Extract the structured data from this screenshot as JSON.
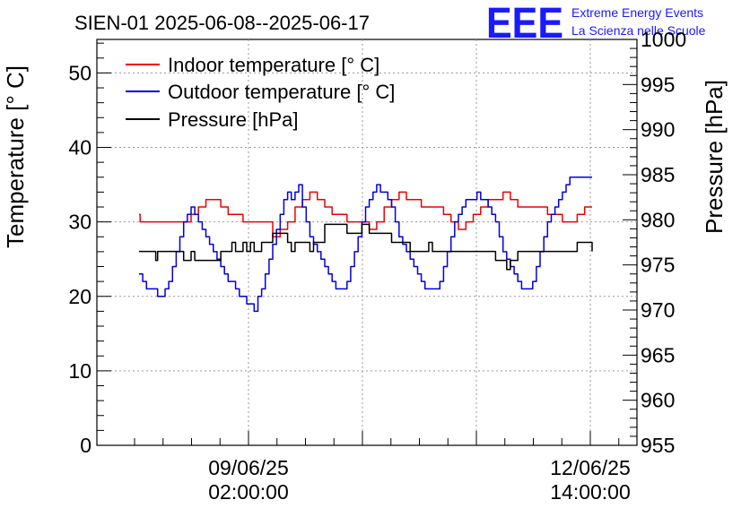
{
  "chart_data": {
    "type": "line",
    "title": "SIEN-01 2025-06-08--2025-06-17",
    "logo": {
      "text": "EEE",
      "line1": "Extreme Energy Events",
      "line2": "La Scienza nelle Scuole"
    },
    "ylabel_left": "Temperature [° C]",
    "ylabel_right": "Pressure [hPa]",
    "x_tick_labels": [
      {
        "date": "09/06/25",
        "time": "02:00:00"
      },
      {
        "date": "12/06/25",
        "time": "14:00:00"
      }
    ],
    "ylim_left": [
      0,
      54.5
    ],
    "ylim_right": [
      955,
      1000
    ],
    "left_ticks": [
      0,
      10,
      20,
      30,
      40,
      50
    ],
    "right_ticks": [
      955,
      960,
      965,
      970,
      975,
      980,
      985,
      990,
      995,
      1000
    ],
    "grid": true,
    "legend_position": "top-left",
    "x_axis": {
      "unit": "hours since 2025-06-08 00:00",
      "range": [
        0,
        122
      ]
    },
    "series": [
      {
        "name": "Indoor temperature [° C]",
        "color": "#ee0000",
        "axis": "left",
        "x": [
          0,
          0.3,
          2,
          6,
          8,
          10,
          12,
          14,
          16,
          18,
          20,
          22,
          24,
          26,
          28,
          30,
          32,
          34,
          36,
          38,
          40,
          42,
          44,
          46,
          48,
          50,
          52,
          54,
          56,
          58,
          60,
          62,
          64,
          66,
          68,
          70,
          72,
          74,
          76,
          78,
          80,
          82,
          84,
          86,
          88,
          90,
          92,
          94,
          96,
          98,
          100,
          102,
          104,
          106,
          108,
          110,
          112,
          114,
          116,
          118,
          120,
          122
        ],
        "values": [
          31,
          30,
          30,
          30,
          30,
          30,
          30,
          31,
          32,
          33,
          33,
          32,
          31,
          31,
          30,
          30,
          30,
          30,
          28,
          29,
          30,
          32,
          33,
          34,
          33,
          32,
          31,
          31,
          30,
          30,
          30,
          29,
          30,
          32,
          33,
          34,
          33,
          33,
          32,
          32,
          32,
          31,
          30,
          29,
          30,
          31,
          32,
          33,
          33,
          34,
          33,
          32,
          32,
          32,
          32,
          31,
          31,
          30,
          30,
          31,
          32,
          32
        ]
      },
      {
        "name": "Outdoor temperature [° C]",
        "color": "#0000dd",
        "axis": "left",
        "x": [
          0,
          1,
          2,
          3,
          4,
          5,
          6,
          7,
          8,
          9,
          10,
          11,
          12,
          13,
          14,
          15,
          16,
          17,
          18,
          19,
          20,
          21,
          22,
          23,
          24,
          25,
          26,
          27,
          28,
          29,
          30,
          31,
          32,
          33,
          34,
          35,
          36,
          37,
          38,
          39,
          40,
          41,
          42,
          43,
          44,
          45,
          46,
          47,
          48,
          49,
          50,
          51,
          52,
          53,
          54,
          55,
          56,
          57,
          58,
          59,
          60,
          61,
          62,
          63,
          64,
          65,
          66,
          67,
          68,
          69,
          70,
          71,
          72,
          73,
          74,
          75,
          76,
          77,
          78,
          79,
          80,
          81,
          82,
          83,
          84,
          85,
          86,
          87,
          88,
          89,
          90,
          91,
          92,
          93,
          94,
          95,
          96,
          97,
          98,
          99,
          100,
          101,
          102,
          103,
          104,
          105,
          106,
          107,
          108,
          109,
          110,
          111,
          112,
          113,
          114,
          115,
          116,
          117,
          118,
          119,
          120,
          121,
          122
        ],
        "values": [
          23,
          22,
          21,
          21,
          21,
          20,
          20,
          21,
          22,
          24,
          26,
          28,
          30,
          31,
          32,
          31,
          30,
          29,
          28,
          27,
          26,
          25,
          24,
          23,
          22,
          22,
          21,
          20,
          20,
          19,
          19,
          18,
          20,
          21,
          23,
          25,
          27,
          29,
          31,
          33,
          34,
          33,
          34,
          35,
          32,
          30,
          28,
          27,
          26,
          25,
          24,
          23,
          22,
          21,
          21,
          21,
          22,
          24,
          26,
          28,
          30,
          32,
          33,
          34,
          35,
          34,
          34,
          33,
          32,
          30,
          28,
          27,
          26,
          25,
          24,
          23,
          22,
          21,
          21,
          21,
          21,
          22,
          24,
          26,
          28,
          30,
          31,
          32,
          33,
          33,
          33,
          34,
          33,
          33,
          32,
          31,
          30,
          28,
          26,
          25,
          24,
          23,
          22,
          21,
          21,
          21,
          22,
          24,
          26,
          28,
          30,
          31,
          32,
          33,
          34,
          35,
          36,
          36,
          36,
          36,
          36,
          36,
          36
        ]
      },
      {
        "name": "Pressure [hPa]",
        "color": "#000000",
        "axis": "right",
        "x": [
          0,
          3,
          4,
          4.5,
          5,
          7,
          11,
          12,
          13,
          14,
          15,
          16,
          18,
          21,
          22,
          23,
          25,
          26,
          28,
          29,
          30,
          31,
          33,
          34,
          36,
          38,
          40,
          41,
          42,
          44,
          46,
          47,
          48,
          50,
          52,
          54,
          56,
          58,
          60,
          62,
          64,
          66,
          68,
          70,
          72,
          73,
          74,
          76,
          78,
          79,
          80,
          82,
          84,
          86,
          88,
          90,
          92,
          94,
          96,
          98,
          99,
          100,
          102,
          104,
          106,
          108,
          110,
          112,
          114,
          116,
          118,
          120,
          122
        ],
        "values": [
          976.5,
          976.5,
          976.5,
          975.5,
          976.5,
          976.5,
          976.5,
          975.5,
          975.5,
          976.5,
          975.5,
          975.5,
          975.5,
          975.5,
          976.5,
          976.5,
          977.5,
          976.5,
          977.5,
          976.5,
          977.5,
          976.5,
          977.5,
          977.5,
          978.5,
          978.5,
          977.5,
          976.5,
          977.5,
          977.5,
          976.5,
          977.5,
          977.5,
          979.5,
          979.5,
          979.5,
          978.5,
          978.5,
          979.5,
          978.5,
          978.5,
          978.5,
          977.5,
          977.5,
          977.5,
          976.5,
          976.5,
          976.5,
          977.5,
          976.5,
          976.5,
          976.5,
          976.5,
          976.5,
          976.5,
          976.5,
          976.5,
          976.5,
          975.5,
          975.5,
          974.5,
          975.5,
          976.5,
          976.5,
          976.5,
          976.5,
          976.5,
          976.5,
          976.5,
          976.5,
          977.5,
          977.5,
          976.5
        ]
      }
    ]
  }
}
